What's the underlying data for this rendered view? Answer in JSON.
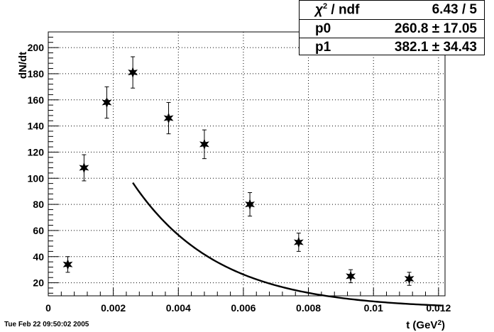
{
  "chart_data": {
    "type": "scatter",
    "title": "",
    "xlabel": "t (GeV²)",
    "ylabel": "dN/dt",
    "xlim": [
      0,
      0.0122
    ],
    "ylim": [
      10,
      212
    ],
    "grid": true,
    "x_ticks": [
      0,
      0.002,
      0.004,
      0.006,
      0.008,
      0.01,
      0.012
    ],
    "x_tick_labels": [
      "0",
      "0.002",
      "0.004",
      "0.006",
      "0.008",
      "0.01",
      "0.012"
    ],
    "y_ticks": [
      20,
      40,
      60,
      80,
      100,
      120,
      140,
      160,
      180,
      200
    ],
    "y_tick_labels": [
      "20",
      "40",
      "60",
      "80",
      "100",
      "120",
      "140",
      "160",
      "180",
      "200"
    ],
    "series": [
      {
        "type": "scatter",
        "x": [
          0.0006,
          0.0011,
          0.0018,
          0.0026,
          0.0037,
          0.0048,
          0.0062,
          0.0077,
          0.0093,
          0.0111
        ],
        "y": [
          34,
          108,
          158,
          181,
          146,
          126,
          80,
          51,
          25,
          23
        ],
        "yerr": [
          6,
          10,
          12,
          12,
          12,
          11,
          9,
          7,
          5,
          5
        ]
      },
      {
        "type": "line",
        "function": "p0 * exp(-p1 * t)",
        "x_range": [
          0.0026,
          0.0121
        ],
        "params": {
          "p0": 260.8,
          "p1": 382.1
        }
      }
    ]
  },
  "stats": {
    "rows": [
      {
        "key_sym": "χ",
        "key_sup": "2",
        "key_rest": " / ndf",
        "value": "6.43 / 5"
      },
      {
        "key": "p0",
        "value": "260.8 ± 17.05"
      },
      {
        "key": "p1",
        "value": "382.1 ± 34.43"
      }
    ]
  },
  "footer": "Tue Feb 22 09:50:02 2005",
  "colors": {
    "data": "#000000",
    "fit": "#000000",
    "grid": "#000000"
  }
}
